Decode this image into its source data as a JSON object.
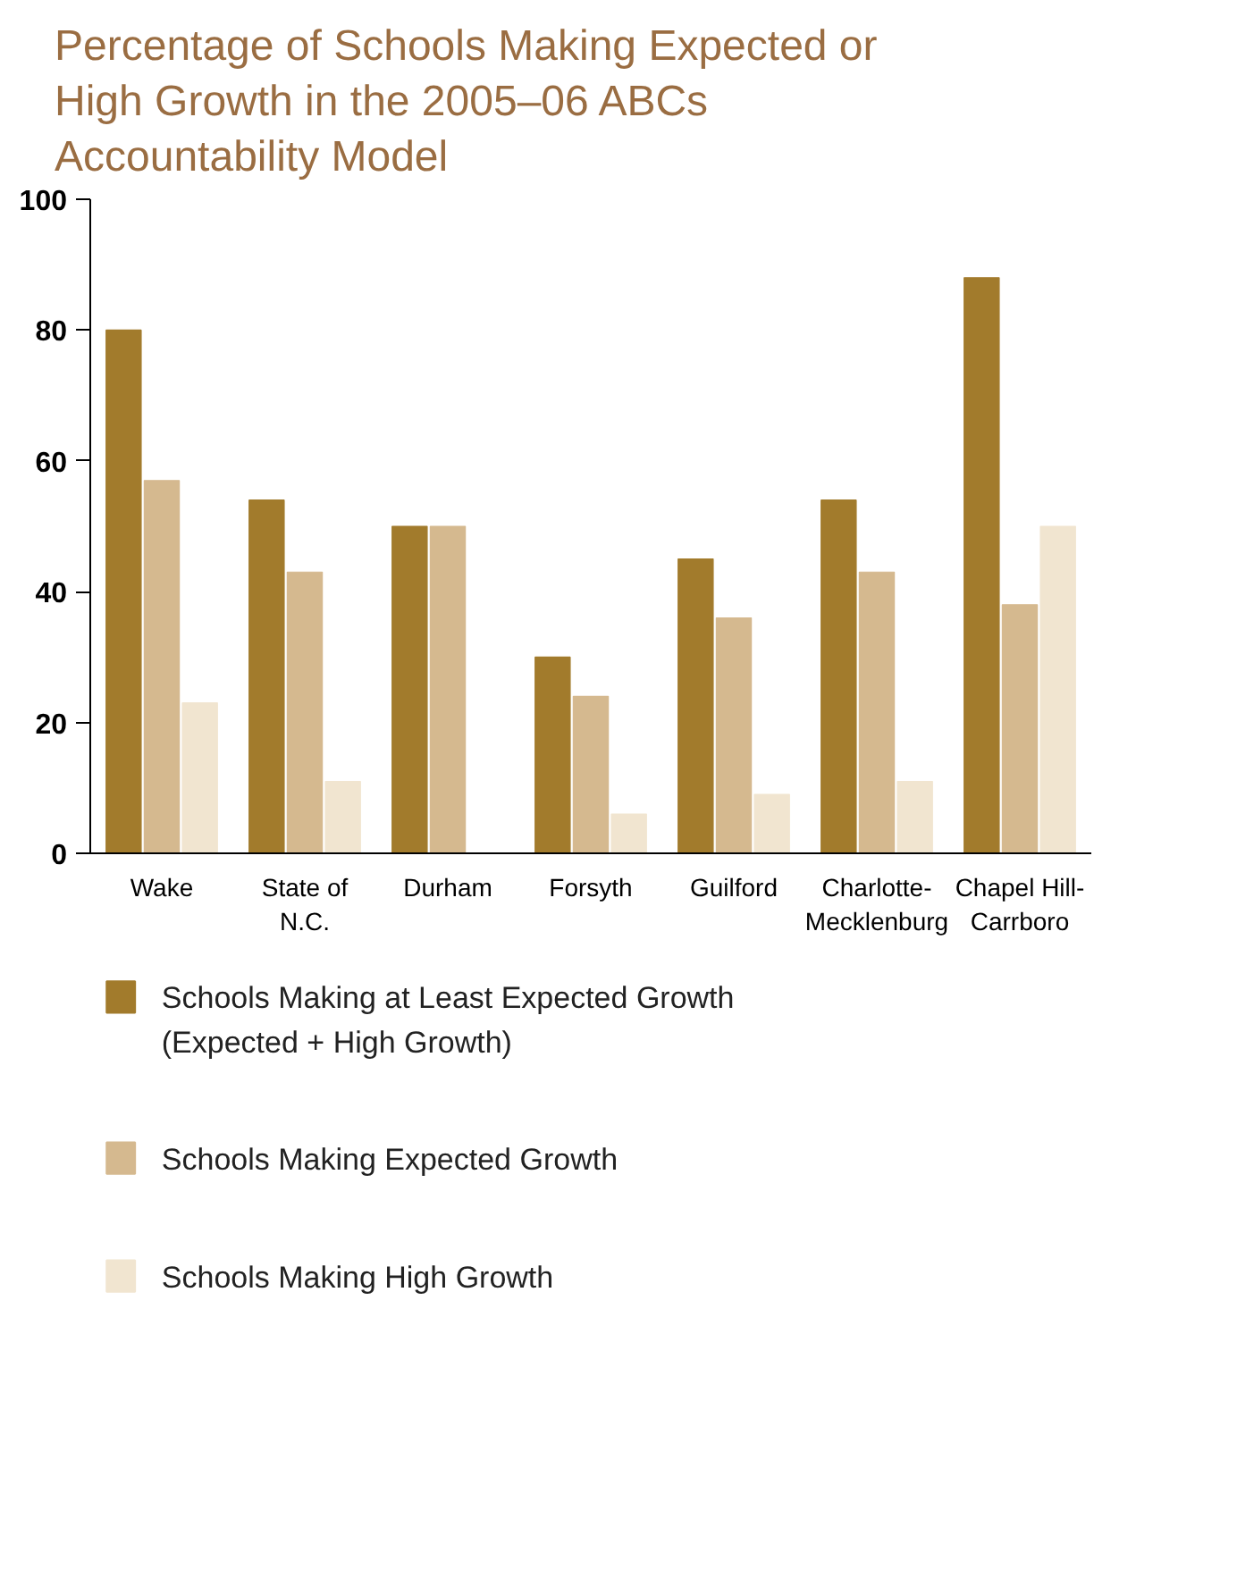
{
  "chart_data": {
    "type": "bar",
    "title": "Percentage of Schools Making Expected or High Growth in the 2005–06 ABCs Accountability Model",
    "categories": [
      "Wake",
      "State of N.C.",
      "Durham",
      "Forsyth",
      "Guilford",
      "Charlotte-Mecklenburg",
      "Chapel Hill-Carrboro"
    ],
    "series": [
      {
        "name": "Schools Making at Least Expected Growth (Expected + High Growth)",
        "color": "#a27b2c",
        "values": [
          80,
          54,
          50,
          30,
          45,
          54,
          88
        ]
      },
      {
        "name": "Schools Making Expected Growth",
        "color": "#d5b98f",
        "values": [
          57,
          43,
          50,
          24,
          36,
          43,
          38
        ]
      },
      {
        "name": "Schools Making High Growth",
        "color": "#f1e5d0",
        "values": [
          23,
          11,
          0,
          6,
          9,
          11,
          50
        ]
      }
    ],
    "ylim": [
      0,
      100
    ],
    "yticks": [
      0,
      20,
      40,
      60,
      80,
      100
    ],
    "grid": false,
    "legend": "bottom"
  }
}
